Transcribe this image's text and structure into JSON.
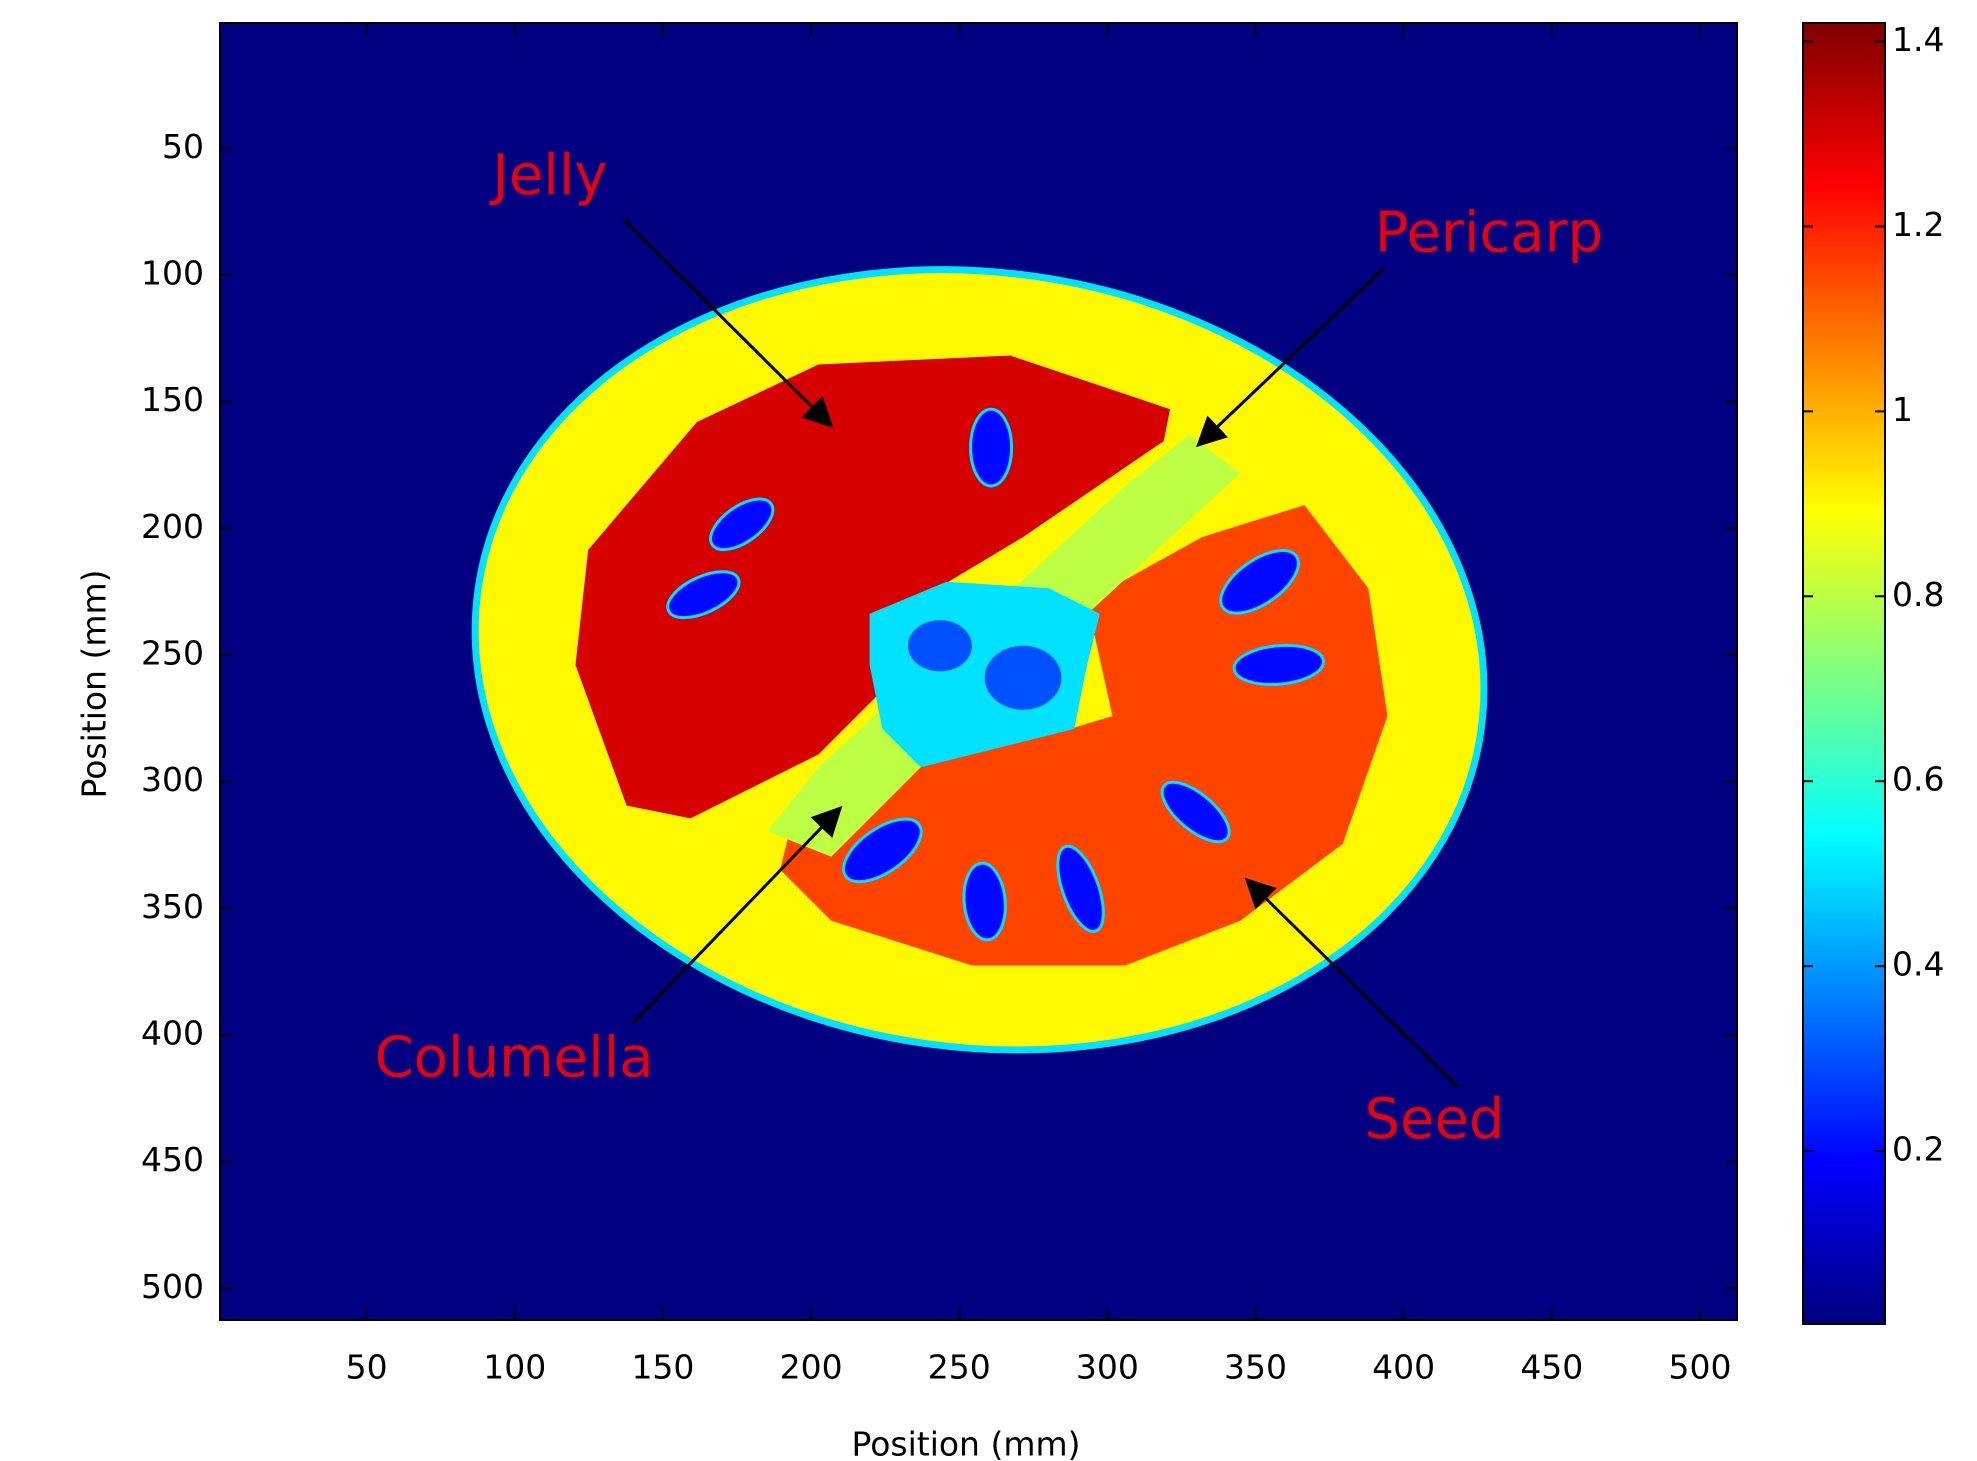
{
  "chart_data": {
    "type": "heatmap",
    "xlabel": "Position (mm)",
    "ylabel": "Position (mm)",
    "xlim": [
      0.5,
      512.5
    ],
    "ylim": [
      0.5,
      512.5
    ],
    "xticks": [
      50,
      100,
      150,
      200,
      250,
      300,
      350,
      400,
      450,
      500
    ],
    "yticks": [
      50,
      100,
      150,
      200,
      250,
      300,
      350,
      400,
      450,
      500
    ],
    "colormap": "jet",
    "clim": [
      0.013,
      1.42
    ],
    "cticks": [
      0.2,
      0.4,
      0.6,
      0.8,
      1,
      1.2,
      1.4
    ],
    "annotations": [
      {
        "text": "Jelly",
        "value": 1.3
      },
      {
        "text": "Pericarp",
        "value": 0.9
      },
      {
        "text": "Columella",
        "value": 0.5
      },
      {
        "text": "Seed",
        "value": 0.2
      }
    ]
  }
}
